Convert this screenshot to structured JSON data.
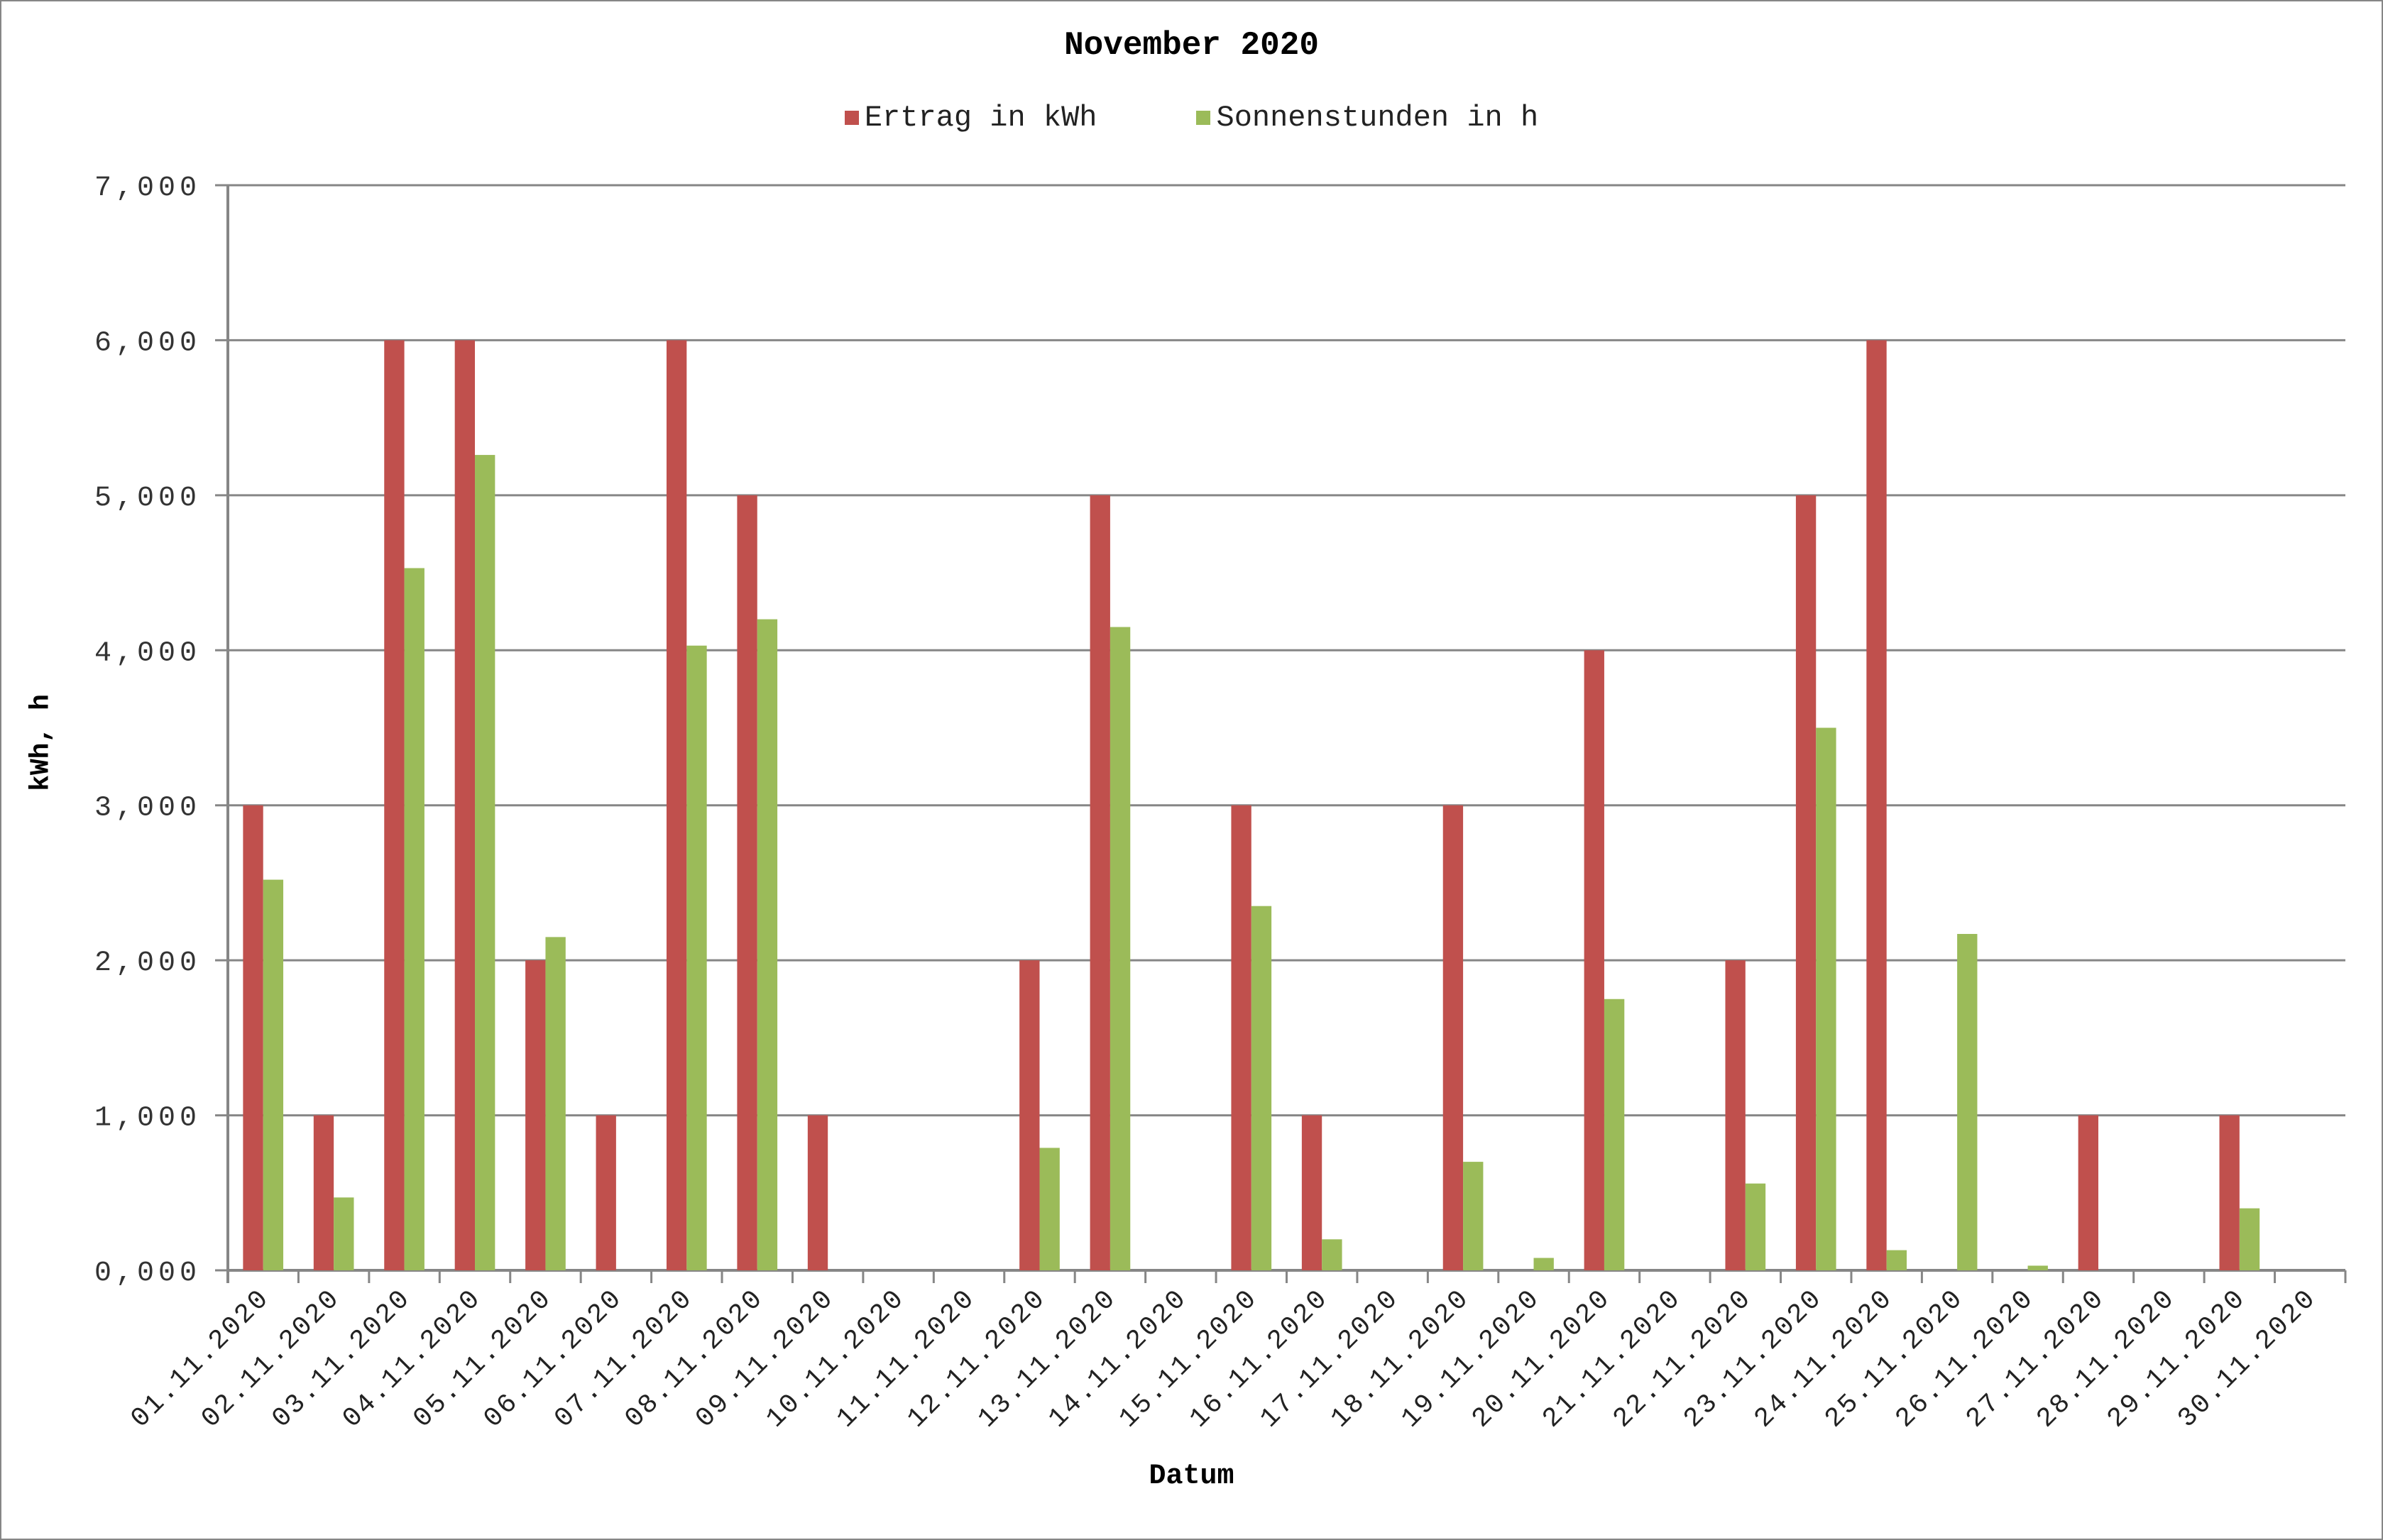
{
  "chart_data": {
    "type": "bar",
    "title": "November 2020",
    "xlabel": "Datum",
    "ylabel": "kWh, h",
    "ylim": [
      0,
      7
    ],
    "yticks": [
      "0,000",
      "1,000",
      "2,000",
      "3,000",
      "4,000",
      "5,000",
      "6,000",
      "7,000"
    ],
    "grid": true,
    "legend_position": "top",
    "categories": [
      "01.11.2020",
      "02.11.2020",
      "03.11.2020",
      "04.11.2020",
      "05.11.2020",
      "06.11.2020",
      "07.11.2020",
      "08.11.2020",
      "09.11.2020",
      "10.11.2020",
      "11.11.2020",
      "12.11.2020",
      "13.11.2020",
      "14.11.2020",
      "15.11.2020",
      "16.11.2020",
      "17.11.2020",
      "18.11.2020",
      "19.11.2020",
      "20.11.2020",
      "21.11.2020",
      "22.11.2020",
      "23.11.2020",
      "24.11.2020",
      "25.11.2020",
      "26.11.2020",
      "27.11.2020",
      "28.11.2020",
      "29.11.2020",
      "30.11.2020"
    ],
    "series": [
      {
        "name": "Ertrag in kWh",
        "color": "#C0504D",
        "values": [
          3,
          1,
          6,
          6,
          2,
          1,
          6,
          5,
          1,
          0,
          0,
          2,
          5,
          0,
          3,
          1,
          0,
          3,
          0,
          4,
          0,
          2,
          5,
          6,
          0,
          0,
          1,
          0,
          1,
          0
        ]
      },
      {
        "name": "Sonnenstunden in h",
        "color": "#9BBB59",
        "values": [
          2.52,
          0.47,
          4.53,
          5.26,
          2.15,
          0,
          4.03,
          4.2,
          0,
          0,
          0,
          0.79,
          4.15,
          0,
          2.35,
          0.2,
          0,
          0.7,
          0.08,
          1.75,
          0,
          0.56,
          3.5,
          0.13,
          2.17,
          0.03,
          0,
          0,
          0.4,
          0
        ]
      }
    ]
  },
  "colors": {
    "gridline": "#868686",
    "axis": "#868686"
  }
}
